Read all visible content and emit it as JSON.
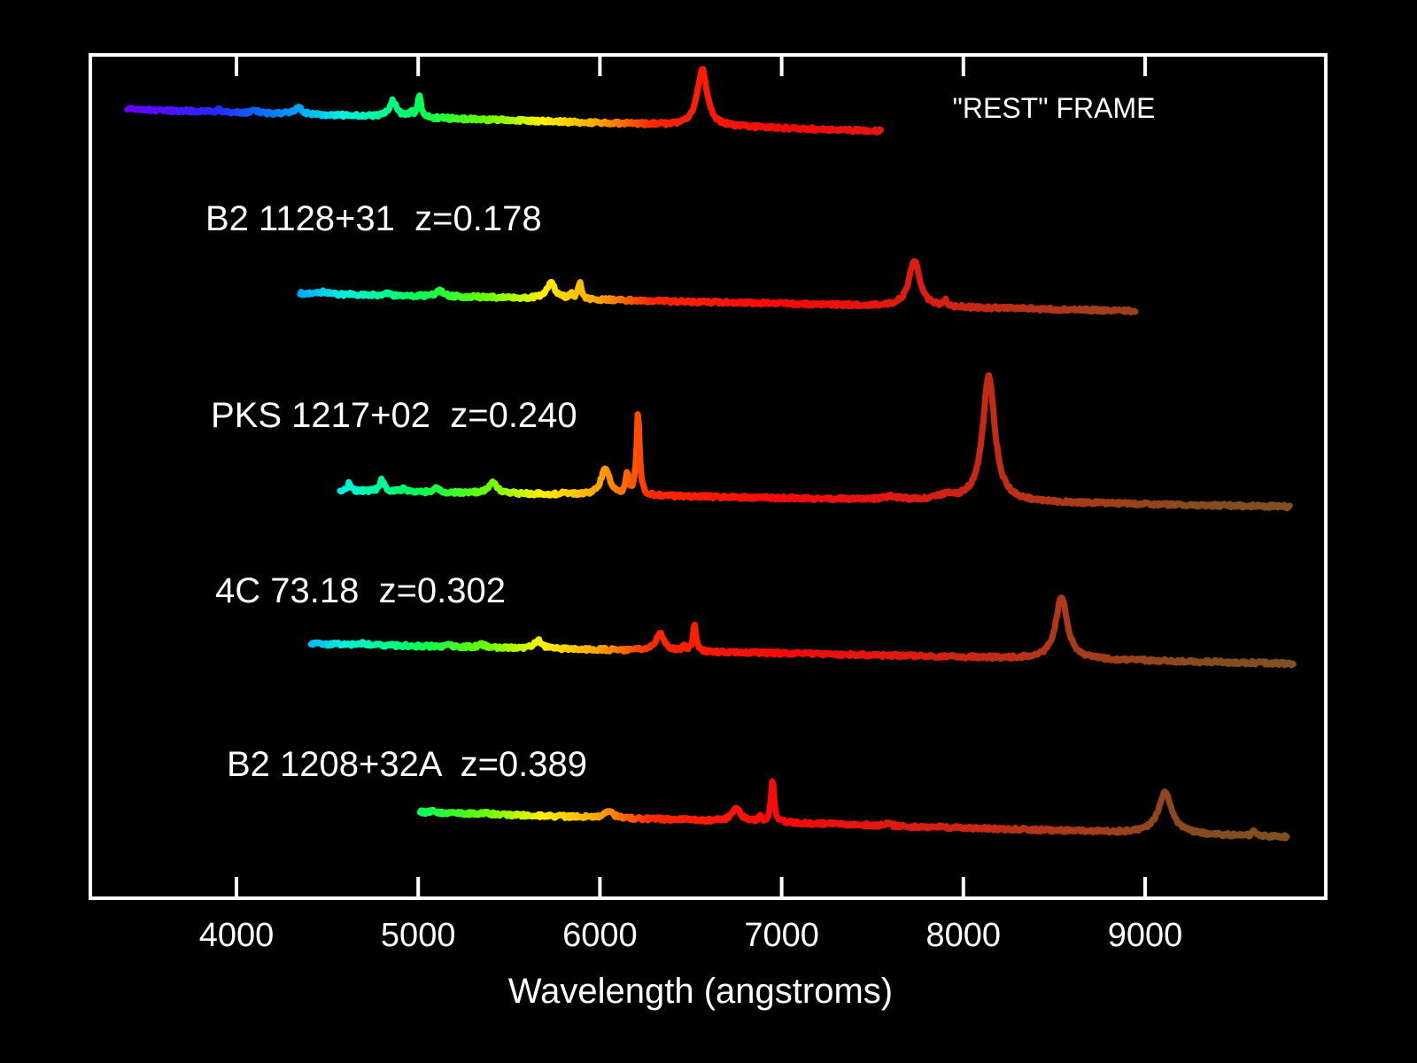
{
  "chart_data": {
    "type": "line",
    "title": "",
    "xlabel": "Wavelength (angstroms)",
    "ylabel": "",
    "xlim": [
      3200,
      10000
    ],
    "xticks": [
      4000,
      5000,
      6000,
      7000,
      8000,
      9000
    ],
    "xtick_labels": [
      "4000",
      "5000",
      "6000",
      "7000",
      "8000",
      "9000"
    ],
    "grid": false,
    "background": "#000000",
    "axis_color": "#ffffff",
    "series": [
      {
        "name": "\"REST\" FRAME",
        "redshift": 0,
        "x_range": [
          3400,
          7550
        ],
        "baseline": [
          3400,
          0.62,
          7550,
          0.0
        ],
        "lines": [
          {
            "x": 3900,
            "h": 0.05,
            "w": 15
          },
          {
            "x": 4102,
            "h": 0.07,
            "w": 15
          },
          {
            "x": 4340,
            "h": 0.18,
            "w": 25
          },
          {
            "x": 4861,
            "h": 0.45,
            "w": 25
          },
          {
            "x": 4959,
            "h": 0.15,
            "w": 10
          },
          {
            "x": 5007,
            "h": 0.65,
            "w": 10
          },
          {
            "x": 6563,
            "h": 1.6,
            "w": 32
          }
        ]
      },
      {
        "name": "B2 1128+31  z=0.178",
        "redshift": 0.178,
        "x_range": [
          4350,
          8950
        ],
        "baseline": [
          4350,
          0.22,
          8950,
          -0.28
        ],
        "lines": [
          {
            "x": 4480,
            "h": 0.08,
            "w": 15
          },
          {
            "x": 4825,
            "h": 0.05,
            "w": 15
          },
          {
            "x": 5120,
            "h": 0.15,
            "w": 25
          },
          {
            "x": 5730,
            "h": 0.45,
            "w": 28
          },
          {
            "x": 5840,
            "h": 0.15,
            "w": 10
          },
          {
            "x": 5890,
            "h": 0.5,
            "w": 10
          },
          {
            "x": 7730,
            "h": 1.3,
            "w": 35
          },
          {
            "x": 7900,
            "h": 0.15,
            "w": 10
          }
        ]
      },
      {
        "name": "PKS 1217+02  z=0.240",
        "redshift": 0.24,
        "x_range": [
          4570,
          9800
        ],
        "baseline": [
          4570,
          0.1,
          9800,
          -0.35
        ],
        "lines": [
          {
            "x": 4620,
            "h": 0.22,
            "w": 10
          },
          {
            "x": 4800,
            "h": 0.32,
            "w": 15
          },
          {
            "x": 4920,
            "h": 0.1,
            "w": 15
          },
          {
            "x": 5100,
            "h": 0.12,
            "w": 15
          },
          {
            "x": 5410,
            "h": 0.33,
            "w": 25
          },
          {
            "x": 5800,
            "h": 0.05,
            "w": 15
          },
          {
            "x": 6030,
            "h": 0.75,
            "w": 28
          },
          {
            "x": 6150,
            "h": 0.55,
            "w": 10
          },
          {
            "x": 6210,
            "h": 2.35,
            "w": 10
          },
          {
            "x": 7600,
            "h": 0.1,
            "w": 40
          },
          {
            "x": 7900,
            "h": 0.12,
            "w": 60
          },
          {
            "x": 8140,
            "h": 3.55,
            "w": 40
          }
        ]
      },
      {
        "name": "4C 73.18  z=0.302",
        "redshift": 0.302,
        "x_range": [
          4410,
          9820
        ],
        "baseline": [
          4410,
          0.28,
          9820,
          -0.28
        ],
        "lines": [
          {
            "x": 4700,
            "h": 0.05,
            "w": 15
          },
          {
            "x": 5170,
            "h": 0.05,
            "w": 15
          },
          {
            "x": 5350,
            "h": 0.08,
            "w": 20
          },
          {
            "x": 5660,
            "h": 0.22,
            "w": 25
          },
          {
            "x": 6330,
            "h": 0.5,
            "w": 28
          },
          {
            "x": 6460,
            "h": 0.15,
            "w": 10
          },
          {
            "x": 6520,
            "h": 0.75,
            "w": 10
          },
          {
            "x": 8540,
            "h": 1.75,
            "w": 38
          }
        ]
      },
      {
        "name": "B2 1208+32A  z=0.389",
        "redshift": 0.389,
        "x_range": [
          5010,
          9780
        ],
        "baseline": [
          5010,
          0.45,
          9780,
          -0.25
        ],
        "lines": [
          {
            "x": 5080,
            "h": 0.08,
            "w": 15
          },
          {
            "x": 5380,
            "h": 0.05,
            "w": 15
          },
          {
            "x": 6050,
            "h": 0.2,
            "w": 25
          },
          {
            "x": 6750,
            "h": 0.35,
            "w": 30
          },
          {
            "x": 6880,
            "h": 0.15,
            "w": 10
          },
          {
            "x": 6950,
            "h": 1.2,
            "w": 10
          },
          {
            "x": 7580,
            "h": 0.08,
            "w": 15
          },
          {
            "x": 9110,
            "h": 1.15,
            "w": 45
          },
          {
            "x": 9600,
            "h": 0.15,
            "w": 10
          }
        ]
      }
    ]
  }
}
